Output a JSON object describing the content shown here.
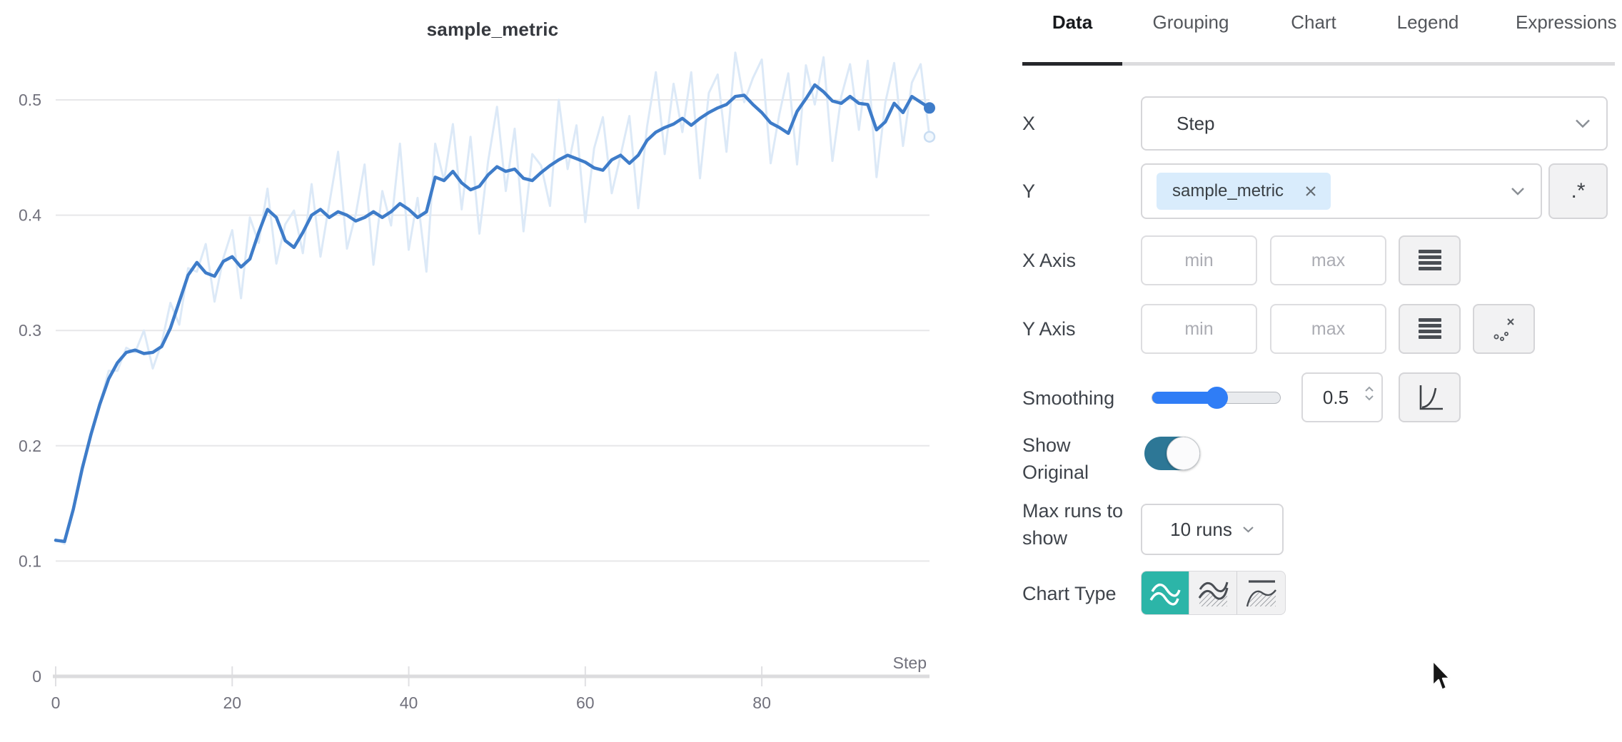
{
  "chart": {
    "title": "sample_metric"
  },
  "chart_data": {
    "type": "line",
    "title": "sample_metric",
    "xlabel": "Step",
    "ylabel": "",
    "x_range": [
      0,
      99
    ],
    "ylim": [
      0,
      0.55
    ],
    "x_ticks": [
      0,
      20,
      40,
      60,
      80
    ],
    "y_ticks": [
      0,
      0.1,
      0.2,
      0.3,
      0.4,
      0.5
    ],
    "grid": "horizontal",
    "legend": "none",
    "series": [
      {
        "name": "sample_metric (original)",
        "color": "#DCE9F7",
        "stroke_width": 3,
        "endpoint": "ring",
        "values": [
          0.119,
          0.115,
          0.146,
          0.183,
          0.208,
          0.236,
          0.265,
          0.265,
          0.285,
          0.281,
          0.3,
          0.267,
          0.289,
          0.324,
          0.305,
          0.354,
          0.351,
          0.375,
          0.325,
          0.363,
          0.387,
          0.328,
          0.398,
          0.376,
          0.423,
          0.358,
          0.392,
          0.404,
          0.367,
          0.427,
          0.364,
          0.41,
          0.455,
          0.371,
          0.401,
          0.444,
          0.357,
          0.421,
          0.391,
          0.462,
          0.37,
          0.415,
          0.351,
          0.462,
          0.43,
          0.479,
          0.405,
          0.468,
          0.384,
          0.447,
          0.494,
          0.421,
          0.475,
          0.386,
          0.453,
          0.443,
          0.408,
          0.5,
          0.44,
          0.478,
          0.394,
          0.458,
          0.485,
          0.419,
          0.452,
          0.486,
          0.406,
          0.477,
          0.524,
          0.453,
          0.514,
          0.472,
          0.524,
          0.432,
          0.506,
          0.522,
          0.455,
          0.541,
          0.498,
          0.519,
          0.535,
          0.445,
          0.488,
          0.523,
          0.444,
          0.53,
          0.496,
          0.537,
          0.447,
          0.503,
          0.531,
          0.474,
          0.534,
          0.433,
          0.498,
          0.532,
          0.46,
          0.515,
          0.531,
          0.468
        ]
      },
      {
        "name": "sample_metric (smoothed 0.5)",
        "color": "#3E7CC9",
        "stroke_width": 4.5,
        "endpoint": "dot",
        "values": [
          0.118,
          0.117,
          0.145,
          0.18,
          0.21,
          0.236,
          0.258,
          0.272,
          0.281,
          0.283,
          0.28,
          0.281,
          0.286,
          0.302,
          0.325,
          0.348,
          0.359,
          0.35,
          0.347,
          0.36,
          0.364,
          0.355,
          0.362,
          0.385,
          0.405,
          0.398,
          0.378,
          0.372,
          0.385,
          0.4,
          0.405,
          0.398,
          0.403,
          0.4,
          0.395,
          0.398,
          0.403,
          0.398,
          0.403,
          0.41,
          0.405,
          0.398,
          0.403,
          0.433,
          0.43,
          0.438,
          0.428,
          0.422,
          0.425,
          0.435,
          0.442,
          0.438,
          0.44,
          0.432,
          0.43,
          0.437,
          0.443,
          0.448,
          0.452,
          0.449,
          0.446,
          0.441,
          0.439,
          0.448,
          0.452,
          0.445,
          0.452,
          0.465,
          0.472,
          0.476,
          0.479,
          0.484,
          0.478,
          0.484,
          0.489,
          0.493,
          0.496,
          0.503,
          0.504,
          0.496,
          0.489,
          0.48,
          0.476,
          0.471,
          0.49,
          0.501,
          0.513,
          0.507,
          0.499,
          0.497,
          0.503,
          0.497,
          0.496,
          0.474,
          0.481,
          0.497,
          0.489,
          0.503,
          0.498,
          0.493
        ]
      }
    ]
  },
  "tabs": [
    {
      "label": "Data",
      "active": true
    },
    {
      "label": "Grouping",
      "active": false
    },
    {
      "label": "Chart",
      "active": false
    },
    {
      "label": "Legend",
      "active": false
    },
    {
      "label": "Expressions",
      "active": false
    }
  ],
  "form": {
    "x": {
      "label": "X",
      "value": "Step"
    },
    "y": {
      "label": "Y",
      "chip": "sample_metric",
      "regex_button": ".*"
    },
    "x_axis": {
      "label": "X Axis",
      "min_placeholder": "min",
      "max_placeholder": "max"
    },
    "y_axis": {
      "label": "Y Axis",
      "min_placeholder": "min",
      "max_placeholder": "max"
    },
    "smoothing": {
      "label": "Smoothing",
      "value": "0.5",
      "percent": 50
    },
    "show_original": {
      "label_line1": "Show",
      "label_line2": "Original",
      "on": true
    },
    "max_runs": {
      "label_line1": "Max runs to",
      "label_line2": "show",
      "value": "10 runs"
    },
    "chart_type": {
      "label": "Chart Type",
      "selected_index": 0,
      "options": [
        "line-plot",
        "area-plot",
        "percentile-plot"
      ]
    }
  },
  "colors": {
    "accent_teal": "#2CB5A8",
    "toggle_on": "#2D7796",
    "slider_blue": "#2F7DF6",
    "chip_bg": "#D9ECFC",
    "smoothed_line": "#3E7CC9",
    "original_line": "#DCE9F7",
    "gridline": "#E7E7E9",
    "axis_line": "#DCDCDE",
    "tick_text": "#71717C"
  }
}
